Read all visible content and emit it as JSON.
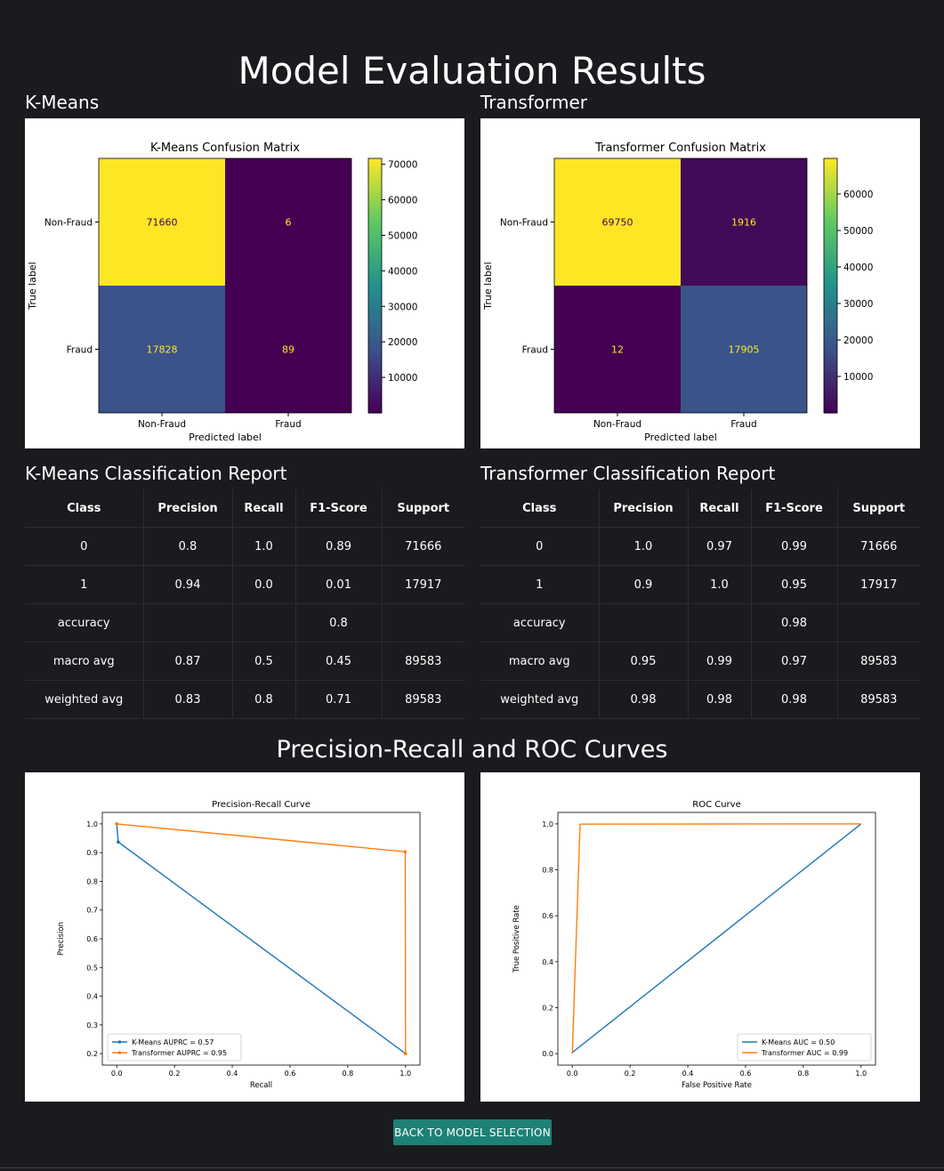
{
  "page": {
    "title": "Model Evaluation Results",
    "curves_title": "Precision-Recall and ROC Curves",
    "back_button": "BACK TO MODEL SELECTION"
  },
  "kmeans": {
    "heading": "K-Means",
    "report_heading": "K-Means Classification Report",
    "chart_title": "K-Means Confusion Matrix"
  },
  "transformer": {
    "heading": "Transformer",
    "report_heading": "Transformer Classification Report",
    "chart_title": "Transformer Confusion Matrix"
  },
  "report_columns": [
    "Class",
    "Precision",
    "Recall",
    "F1-Score",
    "Support"
  ],
  "reports": {
    "kmeans": [
      [
        "0",
        "0.8",
        "1.0",
        "0.89",
        "71666"
      ],
      [
        "1",
        "0.94",
        "0.0",
        "0.01",
        "17917"
      ],
      [
        "accuracy",
        "",
        "",
        "0.8",
        ""
      ],
      [
        "macro avg",
        "0.87",
        "0.5",
        "0.45",
        "89583"
      ],
      [
        "weighted avg",
        "0.83",
        "0.8",
        "0.71",
        "89583"
      ]
    ],
    "transformer": [
      [
        "0",
        "1.0",
        "0.97",
        "0.99",
        "71666"
      ],
      [
        "1",
        "0.9",
        "1.0",
        "0.95",
        "17917"
      ],
      [
        "accuracy",
        "",
        "",
        "0.98",
        ""
      ],
      [
        "macro avg",
        "0.95",
        "0.99",
        "0.97",
        "89583"
      ],
      [
        "weighted avg",
        "0.98",
        "0.98",
        "0.98",
        "89583"
      ]
    ]
  },
  "chart_data": [
    {
      "type": "heatmap",
      "title": "K-Means Confusion Matrix",
      "xlabel": "Predicted label",
      "ylabel": "True label",
      "x_categories": [
        "Non-Fraud",
        "Fraud"
      ],
      "y_categories": [
        "Non-Fraud",
        "Fraud"
      ],
      "values": [
        [
          71660,
          6
        ],
        [
          17828,
          89
        ]
      ],
      "colormap": "viridis",
      "colorbar_ticks": [
        10000,
        20000,
        30000,
        40000,
        50000,
        60000,
        70000
      ]
    },
    {
      "type": "heatmap",
      "title": "Transformer Confusion Matrix",
      "xlabel": "Predicted label",
      "ylabel": "True label",
      "x_categories": [
        "Non-Fraud",
        "Fraud"
      ],
      "y_categories": [
        "Non-Fraud",
        "Fraud"
      ],
      "values": [
        [
          69750,
          1916
        ],
        [
          12,
          17905
        ]
      ],
      "colormap": "viridis",
      "colorbar_ticks": [
        10000,
        20000,
        30000,
        40000,
        50000,
        60000
      ]
    },
    {
      "type": "line",
      "title": "Precision-Recall Curve",
      "xlabel": "Recall",
      "ylabel": "Precision",
      "xlim": [
        -0.05,
        1.05
      ],
      "ylim": [
        0.16,
        1.04
      ],
      "xticks": [
        0.0,
        0.2,
        0.4,
        0.6,
        0.8,
        1.0
      ],
      "yticks": [
        0.2,
        0.3,
        0.4,
        0.5,
        0.6,
        0.7,
        0.8,
        0.9,
        1.0
      ],
      "legend_position": "lower-left",
      "series": [
        {
          "name": "K-Means AUPRC = 0.57",
          "color": "#1f77b4",
          "x": [
            0.0,
            0.005,
            1.0
          ],
          "y": [
            1.0,
            0.937,
            0.2
          ]
        },
        {
          "name": "Transformer AUPRC = 0.95",
          "color": "#ff7f0e",
          "x": [
            0.0,
            0.999,
            1.0
          ],
          "y": [
            1.0,
            0.903,
            0.2
          ]
        }
      ]
    },
    {
      "type": "line",
      "title": "ROC Curve",
      "xlabel": "False Positive Rate",
      "ylabel": "True Positive Rate",
      "xlim": [
        -0.05,
        1.05
      ],
      "ylim": [
        -0.05,
        1.05
      ],
      "xticks": [
        0.0,
        0.2,
        0.4,
        0.6,
        0.8,
        1.0
      ],
      "yticks": [
        0.0,
        0.2,
        0.4,
        0.6,
        0.8,
        1.0
      ],
      "legend_position": "lower-right",
      "series": [
        {
          "name": "K-Means AUC = 0.50",
          "color": "#1f77b4",
          "x": [
            0.0,
            0.0001,
            1.0
          ],
          "y": [
            0.0,
            0.005,
            1.0
          ]
        },
        {
          "name": "Transformer AUC = 0.99",
          "color": "#ff7f0e",
          "x": [
            0.0,
            0.027,
            1.0
          ],
          "y": [
            0.0,
            0.999,
            1.0
          ]
        }
      ]
    }
  ]
}
